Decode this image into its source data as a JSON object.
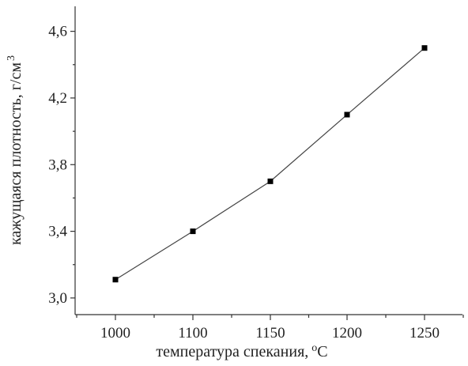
{
  "chart_data": {
    "type": "line",
    "xlabel": "температура спекания,",
    "xlabel_unit_sup": "o",
    "xlabel_unit": "C",
    "ylabel": "кажущаяся плотность, г/см",
    "ylabel_sup": "3",
    "x_ticks": [
      "1000",
      "1100",
      "1150",
      "1200",
      "1250"
    ],
    "y_ticks": [
      "3,0",
      "3,4",
      "3,8",
      "4,2",
      "4,6"
    ],
    "ylim": [
      2.9,
      4.75
    ],
    "grid": false,
    "legend": "none",
    "series": [
      {
        "x": [
          "1000",
          "1100",
          "1150",
          "1200",
          "1250"
        ],
        "values": [
          3.11,
          3.4,
          3.7,
          4.1,
          4.5
        ]
      }
    ]
  }
}
